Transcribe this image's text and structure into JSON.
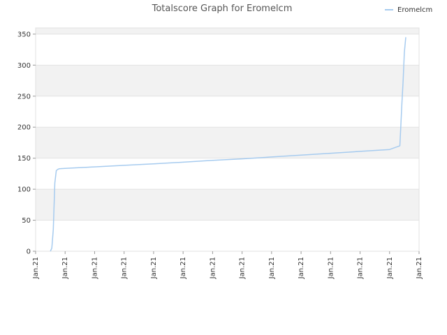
{
  "chart_data": {
    "type": "line",
    "title": "Totalscore Graph for Eromelcm",
    "legend": {
      "position": "top-right",
      "entries": [
        "Eromelcm"
      ]
    },
    "xlabel": "",
    "ylabel": "",
    "ylim": [
      0,
      360
    ],
    "y_ticks": [
      0,
      50,
      100,
      150,
      200,
      250,
      300,
      350
    ],
    "x_ticks": [
      "Jan.21",
      "Jan.21",
      "Jan.21",
      "Jan.21",
      "Jan.21",
      "Jan.21",
      "Jan.21",
      "Jan.21",
      "Jan.21",
      "Jan.21",
      "Jan.21",
      "Jan.21",
      "Jan.21",
      "Jan.21"
    ],
    "grid": true,
    "series": [
      {
        "name": "Eromelcm",
        "color": "#a6cbef",
        "x": [
          0.5,
          0.55,
          0.6,
          0.65,
          0.7,
          0.75,
          0.8,
          1.0,
          2.0,
          3.0,
          4.0,
          5.0,
          6.0,
          7.0,
          8.0,
          9.0,
          10.0,
          11.0,
          12.0,
          12.35,
          12.38,
          12.42,
          12.46,
          12.5,
          12.55
        ],
        "values": [
          0,
          5,
          35,
          110,
          130,
          132,
          133,
          133.5,
          136,
          138.5,
          141,
          143.5,
          146.5,
          149,
          152,
          155,
          158,
          161,
          164,
          170,
          200,
          240,
          275,
          320,
          345
        ]
      }
    ]
  }
}
